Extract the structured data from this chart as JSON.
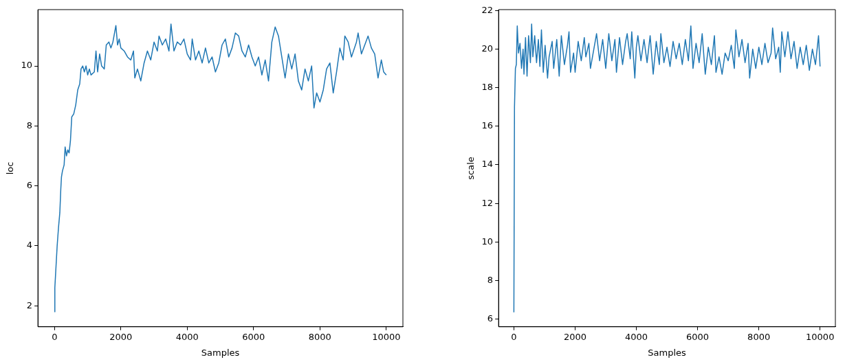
{
  "chart_data": [
    {
      "type": "line",
      "xlabel": "Samples",
      "ylabel": "loc",
      "color": "#1f77b4",
      "grid": false,
      "xlim": [
        -500,
        10500
      ],
      "ylim": [
        1.3,
        11.88
      ],
      "xticks": [
        0,
        2000,
        4000,
        6000,
        8000,
        10000
      ],
      "yticks": [
        2,
        4,
        6,
        8,
        10
      ],
      "x": [
        0,
        10,
        30,
        80,
        120,
        160,
        190,
        210,
        240,
        290,
        320,
        360,
        400,
        440,
        480,
        520,
        580,
        640,
        700,
        760,
        800,
        850,
        900,
        950,
        1000,
        1050,
        1100,
        1200,
        1250,
        1300,
        1360,
        1420,
        1500,
        1560,
        1640,
        1700,
        1760,
        1850,
        1900,
        1950,
        2000,
        2100,
        2200,
        2300,
        2380,
        2420,
        2500,
        2600,
        2700,
        2800,
        2900,
        3000,
        3100,
        3150,
        3250,
        3350,
        3450,
        3510,
        3600,
        3700,
        3800,
        3900,
        4000,
        4100,
        4150,
        4250,
        4350,
        4450,
        4550,
        4650,
        4750,
        4850,
        4950,
        5050,
        5150,
        5250,
        5350,
        5450,
        5550,
        5650,
        5750,
        5850,
        5950,
        6050,
        6150,
        6250,
        6350,
        6450,
        6550,
        6650,
        6750,
        6850,
        6950,
        7050,
        7150,
        7250,
        7350,
        7450,
        7550,
        7650,
        7750,
        7820,
        7900,
        8000,
        8100,
        8200,
        8300,
        8400,
        8500,
        8600,
        8700,
        8750,
        8850,
        8950,
        9100,
        9150,
        9250,
        9350,
        9450,
        9550,
        9650,
        9750,
        9850,
        9920,
        10000
      ],
      "values": [
        1.8,
        2.6,
        3.0,
        4.0,
        4.6,
        5.1,
        5.9,
        6.3,
        6.5,
        6.7,
        7.3,
        7.0,
        7.2,
        7.1,
        7.5,
        8.3,
        8.4,
        8.7,
        9.2,
        9.4,
        9.9,
        10.0,
        9.8,
        10.0,
        9.7,
        9.9,
        9.7,
        9.8,
        10.5,
        9.8,
        10.4,
        10.0,
        9.9,
        10.7,
        10.8,
        10.6,
        10.8,
        11.35,
        10.7,
        10.9,
        10.6,
        10.5,
        10.3,
        10.2,
        10.5,
        9.6,
        9.9,
        9.5,
        10.1,
        10.5,
        10.2,
        10.8,
        10.5,
        11.0,
        10.7,
        10.9,
        10.5,
        11.4,
        10.5,
        10.8,
        10.7,
        10.9,
        10.4,
        10.2,
        10.9,
        10.2,
        10.5,
        10.1,
        10.6,
        10.1,
        10.3,
        9.8,
        10.1,
        10.7,
        10.9,
        10.3,
        10.6,
        11.1,
        11.0,
        10.5,
        10.3,
        10.7,
        10.3,
        10.0,
        10.3,
        9.7,
        10.2,
        9.5,
        10.8,
        11.3,
        11.0,
        10.3,
        9.6,
        10.4,
        9.9,
        10.4,
        9.5,
        9.2,
        9.9,
        9.5,
        10.0,
        8.6,
        9.1,
        8.8,
        9.2,
        9.9,
        10.1,
        9.1,
        9.8,
        10.6,
        10.2,
        11.0,
        10.8,
        10.3,
        10.8,
        11.1,
        10.4,
        10.7,
        11.0,
        10.6,
        10.4,
        9.6,
        10.2,
        9.8,
        9.7
      ]
    },
    {
      "type": "line",
      "xlabel": "Samples",
      "ylabel": "scale",
      "color": "#1f77b4",
      "grid": false,
      "xlim": [
        -500,
        10500
      ],
      "ylim": [
        5.6,
        22.05
      ],
      "xticks": [
        0,
        2000,
        4000,
        6000,
        8000,
        10000
      ],
      "yticks": [
        6,
        8,
        10,
        12,
        14,
        16,
        18,
        20,
        22
      ],
      "x": [
        0,
        20,
        50,
        80,
        110,
        150,
        200,
        250,
        300,
        330,
        380,
        430,
        480,
        540,
        580,
        620,
        680,
        740,
        800,
        850,
        900,
        960,
        1020,
        1100,
        1150,
        1250,
        1300,
        1400,
        1480,
        1550,
        1650,
        1750,
        1800,
        1850,
        1950,
        2000,
        2100,
        2200,
        2300,
        2350,
        2450,
        2500,
        2600,
        2700,
        2800,
        2900,
        3000,
        3100,
        3200,
        3300,
        3350,
        3450,
        3550,
        3650,
        3700,
        3800,
        3850,
        3950,
        4000,
        4050,
        4150,
        4250,
        4350,
        4450,
        4550,
        4650,
        4750,
        4800,
        4900,
        5000,
        5100,
        5200,
        5300,
        5400,
        5500,
        5600,
        5700,
        5780,
        5850,
        5950,
        6050,
        6150,
        6250,
        6350,
        6450,
        6550,
        6600,
        6700,
        6800,
        6900,
        7000,
        7100,
        7200,
        7250,
        7350,
        7450,
        7550,
        7650,
        7700,
        7800,
        7900,
        8000,
        8100,
        8200,
        8300,
        8400,
        8450,
        8550,
        8650,
        8700,
        8750,
        8850,
        8950,
        9050,
        9150,
        9250,
        9350,
        9450,
        9550,
        9650,
        9750,
        9850,
        9950,
        10000
      ],
      "values": [
        6.35,
        17.0,
        19.0,
        19.2,
        21.2,
        19.8,
        20.3,
        19.0,
        20.0,
        18.7,
        20.6,
        18.6,
        20.7,
        19.3,
        21.3,
        19.6,
        20.7,
        19.3,
        20.5,
        19.1,
        21.0,
        18.8,
        20.2,
        18.5,
        19.6,
        20.4,
        19.0,
        20.5,
        18.6,
        20.7,
        19.2,
        20.2,
        20.9,
        18.8,
        19.8,
        18.8,
        20.4,
        19.4,
        20.6,
        19.6,
        20.3,
        19.0,
        19.9,
        20.8,
        19.4,
        20.5,
        19.0,
        20.8,
        19.4,
        20.5,
        18.8,
        20.6,
        19.2,
        20.4,
        20.8,
        19.5,
        20.9,
        18.5,
        20.1,
        20.7,
        19.4,
        20.5,
        19.3,
        20.7,
        18.7,
        20.4,
        19.2,
        20.8,
        19.3,
        20.1,
        19.1,
        20.4,
        19.5,
        20.3,
        19.2,
        20.5,
        19.4,
        21.2,
        19.0,
        20.3,
        19.3,
        20.8,
        18.7,
        20.1,
        19.2,
        20.7,
        18.8,
        19.6,
        18.7,
        19.8,
        19.4,
        20.2,
        19.0,
        21.0,
        19.6,
        20.5,
        19.3,
        20.3,
        18.5,
        20.0,
        19.0,
        20.1,
        19.2,
        20.3,
        19.3,
        19.8,
        21.1,
        19.5,
        20.1,
        18.8,
        20.9,
        19.6,
        20.9,
        19.5,
        20.4,
        19.0,
        20.1,
        19.2,
        20.2,
        18.9,
        20.0,
        19.2,
        20.7,
        19.1
      ]
    }
  ]
}
